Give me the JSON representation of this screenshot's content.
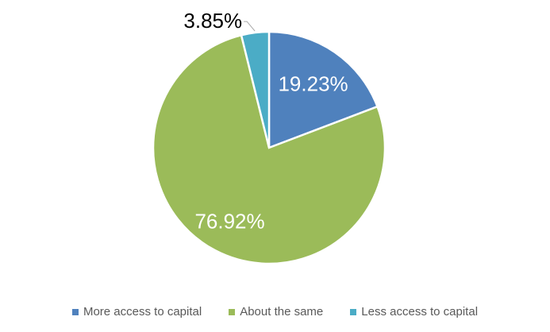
{
  "chart_data": {
    "type": "pie",
    "title": "",
    "slices": [
      {
        "label": "More access to capital",
        "value": 19.23,
        "display": "19.23%",
        "color": "#4F81BD"
      },
      {
        "label": "About the same",
        "value": 76.92,
        "display": "76.92%",
        "color": "#9BBB59"
      },
      {
        "label": "Less access to capital",
        "value": 3.85,
        "display": "3.85%",
        "color": "#4BACC6"
      }
    ],
    "legend_position": "bottom",
    "start_angle": "12 o'clock, clockwise"
  }
}
